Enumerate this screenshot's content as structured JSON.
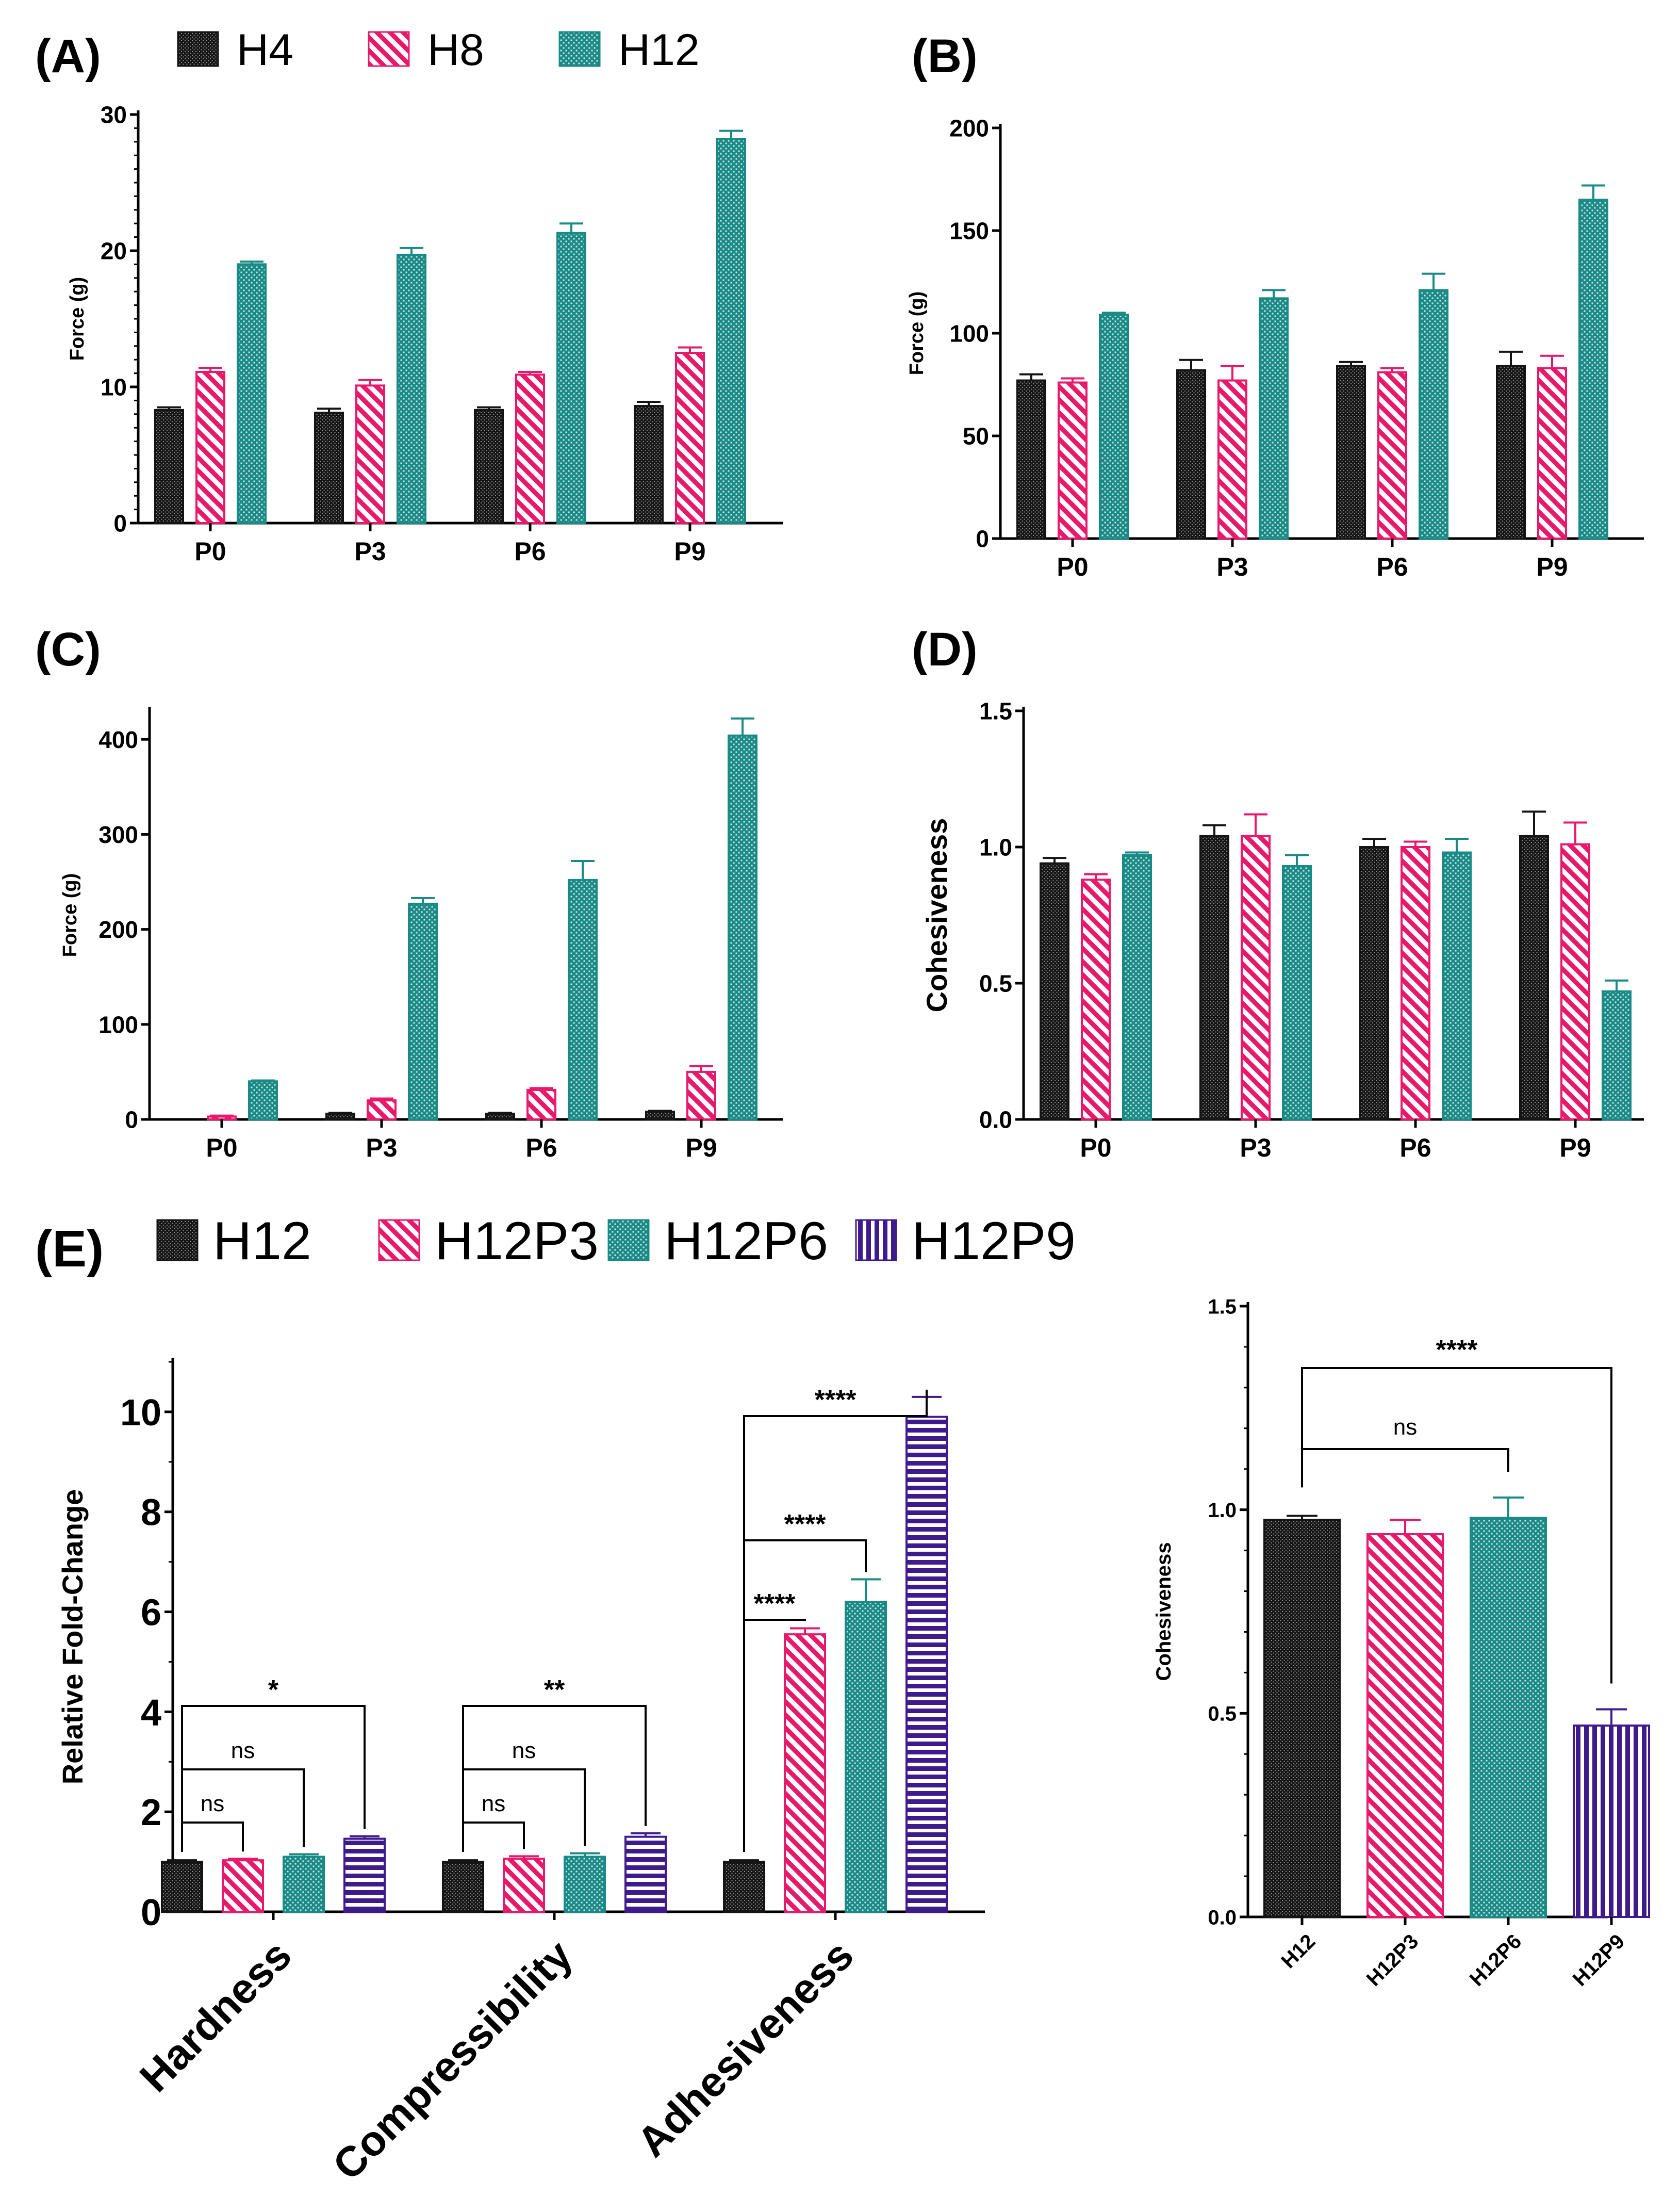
{
  "colors": {
    "h4": "#141414",
    "h8": "#e8196b",
    "h12": "#1a8a86",
    "h12p9": "#3e1a8c",
    "axis": "#000000"
  },
  "legend_top": [
    {
      "label": "H4",
      "pattern": "dots",
      "color": "#141414"
    },
    {
      "label": "H8",
      "pattern": "diag",
      "color": "#e8196b"
    },
    {
      "label": "H12",
      "pattern": "checker",
      "color": "#1a8a86"
    }
  ],
  "legend_e": [
    {
      "label": "H12",
      "pattern": "dots",
      "color": "#141414"
    },
    {
      "label": "H12P3",
      "pattern": "diag",
      "color": "#e8196b"
    },
    {
      "label": "H12P6",
      "pattern": "checker",
      "color": "#1a8a86"
    },
    {
      "label": "H12P9",
      "pattern": "vbars",
      "color": "#3e1a8c"
    }
  ],
  "chart_data": [
    {
      "panel": "(A)",
      "type": "bar",
      "ylabel": "Force (g)",
      "ylim": [
        0,
        30
      ],
      "yticks": [
        "0",
        "10",
        "20",
        "30"
      ],
      "categories": [
        "P0",
        "P3",
        "P6",
        "P9"
      ],
      "series": [
        {
          "name": "H4",
          "values": [
            8.3,
            8.1,
            8.3,
            8.6
          ],
          "errors": [
            0.2,
            0.3,
            0.2,
            0.3
          ]
        },
        {
          "name": "H8",
          "values": [
            11.1,
            10.1,
            10.9,
            12.5
          ],
          "errors": [
            0.3,
            0.4,
            0.2,
            0.4
          ]
        },
        {
          "name": "H12",
          "values": [
            19.0,
            19.7,
            21.3,
            28.2
          ],
          "errors": [
            0.2,
            0.5,
            0.7,
            0.6
          ]
        }
      ]
    },
    {
      "panel": "(B)",
      "type": "bar",
      "ylabel": "Force (g)",
      "ylim": [
        0,
        200
      ],
      "yticks": [
        "0",
        "50",
        "100",
        "150",
        "200"
      ],
      "categories": [
        "P0",
        "P3",
        "P6",
        "P9"
      ],
      "series": [
        {
          "name": "H4",
          "values": [
            77,
            82,
            84,
            84
          ],
          "errors": [
            3,
            5,
            2,
            7
          ]
        },
        {
          "name": "H8",
          "values": [
            76,
            77,
            81,
            83
          ],
          "errors": [
            2,
            7,
            2,
            6
          ]
        },
        {
          "name": "H12",
          "values": [
            109,
            117,
            121,
            165
          ],
          "errors": [
            1,
            4,
            8,
            7
          ]
        }
      ]
    },
    {
      "panel": "(C)",
      "type": "bar",
      "ylabel": "Force (g)",
      "ylim": [
        0,
        430
      ],
      "yticks": [
        "0",
        "100",
        "200",
        "300",
        "400"
      ],
      "categories": [
        "P0",
        "P3",
        "P6",
        "P9"
      ],
      "series": [
        {
          "name": "H4",
          "values": [
            0,
            6,
            6,
            8
          ],
          "errors": [
            0,
            1,
            1,
            1
          ]
        },
        {
          "name": "H8",
          "values": [
            3,
            20,
            31,
            50
          ],
          "errors": [
            1,
            2,
            2,
            6
          ]
        },
        {
          "name": "H12",
          "values": [
            40,
            227,
            252,
            404
          ],
          "errors": [
            1,
            6,
            20,
            18
          ]
        }
      ]
    },
    {
      "panel": "(D)",
      "type": "bar",
      "ylabel": "Cohesiveness",
      "ylim": [
        0,
        1.5
      ],
      "yticks": [
        "0.0",
        "0.5",
        "1.0",
        "1.5"
      ],
      "categories": [
        "P0",
        "P3",
        "P6",
        "P9"
      ],
      "series": [
        {
          "name": "H4",
          "values": [
            0.94,
            1.04,
            1.0,
            1.04
          ],
          "errors": [
            0.02,
            0.04,
            0.03,
            0.09
          ]
        },
        {
          "name": "H8",
          "values": [
            0.88,
            1.04,
            1.0,
            1.01
          ],
          "errors": [
            0.02,
            0.08,
            0.02,
            0.08
          ]
        },
        {
          "name": "H12",
          "values": [
            0.97,
            0.93,
            0.98,
            0.47
          ],
          "errors": [
            0.01,
            0.04,
            0.05,
            0.04
          ]
        }
      ]
    },
    {
      "panel": "(E)",
      "type": "bar",
      "ylabel": "Relative Fold-Change",
      "ylim": [
        0,
        11
      ],
      "yticks": [
        "0",
        "2",
        "4",
        "6",
        "8",
        "10"
      ],
      "categories": [
        "Hardness",
        "Compressibility",
        "Adhesiveness"
      ],
      "series": [
        {
          "name": "H12",
          "values": [
            1.0,
            1.0,
            1.0
          ],
          "errors": [
            0.03,
            0.03,
            0.03
          ]
        },
        {
          "name": "H12P3",
          "values": [
            1.03,
            1.06,
            5.55
          ],
          "errors": [
            0.03,
            0.05,
            0.12
          ]
        },
        {
          "name": "H12P6",
          "values": [
            1.1,
            1.1,
            6.2
          ],
          "errors": [
            0.05,
            0.07,
            0.45
          ]
        },
        {
          "name": "H12P9",
          "values": [
            1.46,
            1.5,
            9.9
          ],
          "errors": [
            0.05,
            0.07,
            0.4
          ]
        }
      ],
      "annotations": [
        {
          "category": "Hardness",
          "from": "H12",
          "to": "H12P3",
          "label": "ns"
        },
        {
          "category": "Hardness",
          "from": "H12",
          "to": "H12P6",
          "label": "ns"
        },
        {
          "category": "Hardness",
          "from": "H12",
          "to": "H12P9",
          "label": "*"
        },
        {
          "category": "Compressibility",
          "from": "H12",
          "to": "H12P3",
          "label": "ns"
        },
        {
          "category": "Compressibility",
          "from": "H12",
          "to": "H12P6",
          "label": "ns"
        },
        {
          "category": "Compressibility",
          "from": "H12",
          "to": "H12P9",
          "label": "**"
        },
        {
          "category": "Adhesiveness",
          "from": "H12",
          "to": "H12P3",
          "label": "****"
        },
        {
          "category": "Adhesiveness",
          "from": "H12",
          "to": "H12P6",
          "label": "****"
        },
        {
          "category": "Adhesiveness",
          "from": "H12",
          "to": "H12P9",
          "label": "****"
        }
      ]
    },
    {
      "panel": "",
      "type": "bar",
      "ylabel": "Cohesiveness",
      "ylim": [
        0,
        1.5
      ],
      "yticks": [
        "0.0",
        "0.5",
        "1.0",
        "1.5"
      ],
      "categories": [
        "H12",
        "H12P3",
        "H12P6",
        "H12P9"
      ],
      "values": [
        0.975,
        0.94,
        0.98,
        0.47
      ],
      "errors": [
        0.01,
        0.035,
        0.05,
        0.04
      ],
      "annotations": [
        {
          "from": "H12",
          "to": "H12P6",
          "label": "ns"
        },
        {
          "from": "H12",
          "to": "H12P9",
          "label": "****"
        }
      ]
    }
  ]
}
